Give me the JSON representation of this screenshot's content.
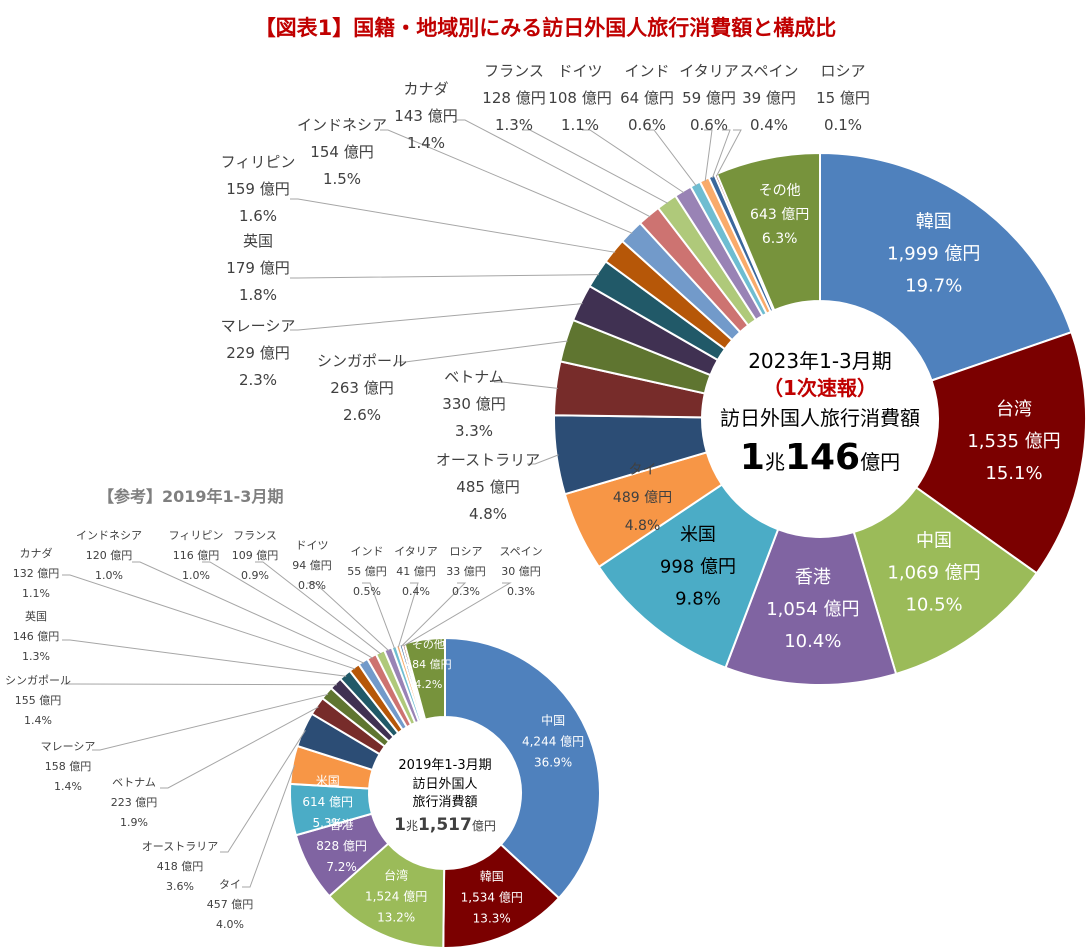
{
  "page_title": "【図表1】国籍・地域別にみる訪日外国人旅行消費額と構成比",
  "ref_title": "【参考】2019年1-3月期",
  "chart_data": [
    {
      "type": "donut",
      "center": {
        "line1": "2023年1-3月期",
        "line2": "（1次速報）",
        "line3": "訪日外国人旅行消費額",
        "total_a": "1",
        "total_b": "兆",
        "total_c": "146",
        "total_d": "億円"
      },
      "unit": "億円",
      "slices": [
        {
          "name": "韓国",
          "value": 1999,
          "value_label": "1,999 億円",
          "pct": "19.7%",
          "color": "#4f81bd"
        },
        {
          "name": "台湾",
          "value": 1535,
          "value_label": "1,535 億円",
          "pct": "15.1%",
          "color": "#7b0000"
        },
        {
          "name": "中国",
          "value": 1069,
          "value_label": "1,069 億円",
          "pct": "10.5%",
          "color": "#9bbb59"
        },
        {
          "name": "香港",
          "value": 1054,
          "value_label": "1,054 億円",
          "pct": "10.4%",
          "color": "#8064a2"
        },
        {
          "name": "米国",
          "value": 998,
          "value_label": "998 億円",
          "pct": "9.8%",
          "color": "#4bacc6"
        },
        {
          "name": "タイ",
          "value": 489,
          "value_label": "489 億円",
          "pct": "4.8%",
          "color": "#f79646"
        },
        {
          "name": "オーストラリア",
          "value": 485,
          "value_label": "485 億円",
          "pct": "4.8%",
          "color": "#2c4d75"
        },
        {
          "name": "ベトナム",
          "value": 330,
          "value_label": "330 億円",
          "pct": "3.3%",
          "color": "#772c2a"
        },
        {
          "name": "シンガポール",
          "value": 263,
          "value_label": "263 億円",
          "pct": "2.6%",
          "color": "#5f7530"
        },
        {
          "name": "マレーシア",
          "value": 229,
          "value_label": "229 億円",
          "pct": "2.3%",
          "color": "#403152"
        },
        {
          "name": "英国",
          "value": 179,
          "value_label": "179 億円",
          "pct": "1.8%",
          "color": "#215968"
        },
        {
          "name": "フィリピン",
          "value": 159,
          "value_label": "159 億円",
          "pct": "1.6%",
          "color": "#b65708"
        },
        {
          "name": "インドネシア",
          "value": 154,
          "value_label": "154 億円",
          "pct": "1.5%",
          "color": "#729aca"
        },
        {
          "name": "カナダ",
          "value": 143,
          "value_label": "143 億円",
          "pct": "1.4%",
          "color": "#cd7371"
        },
        {
          "name": "フランス",
          "value": 128,
          "value_label": "128 億円",
          "pct": "1.3%",
          "color": "#afc97a"
        },
        {
          "name": "ドイツ",
          "value": 108,
          "value_label": "108 億円",
          "pct": "1.1%",
          "color": "#9983b5"
        },
        {
          "name": "インド",
          "value": 64,
          "value_label": "64 億円",
          "pct": "0.6%",
          "color": "#6fbdd1"
        },
        {
          "name": "イタリア",
          "value": 59,
          "value_label": "59 億円",
          "pct": "0.6%",
          "color": "#f9ab6b"
        },
        {
          "name": "スペイン",
          "value": 39,
          "value_label": "39 億円",
          "pct": "0.4%",
          "color": "#3a679c"
        },
        {
          "name": "ロシア",
          "value": 15,
          "value_label": "15 億円",
          "pct": "0.1%",
          "color": "#9e3b38"
        },
        {
          "name": "その他",
          "value": 643,
          "value_label": "643 億円",
          "pct": "6.3%",
          "color": "#77933c"
        }
      ]
    },
    {
      "type": "donut",
      "center": {
        "line1": "2019年1-3月期",
        "line2": "訪日外国人",
        "line3": "旅行消費額",
        "total_a": "1",
        "total_b": "兆",
        "total_c": "1,517",
        "total_d": "億円"
      },
      "unit": "億円",
      "slices": [
        {
          "name": "中国",
          "value": 4244,
          "value_label": "4,244 億円",
          "pct": "36.9%",
          "color": "#4f81bd"
        },
        {
          "name": "韓国",
          "value": 1534,
          "value_label": "1,534 億円",
          "pct": "13.3%",
          "color": "#7b0000"
        },
        {
          "name": "台湾",
          "value": 1524,
          "value_label": "1,524 億円",
          "pct": "13.2%",
          "color": "#9bbb59"
        },
        {
          "name": "香港",
          "value": 828,
          "value_label": "828 億円",
          "pct": "7.2%",
          "color": "#8064a2"
        },
        {
          "name": "米国",
          "value": 614,
          "value_label": "614 億円",
          "pct": "5.3%",
          "color": "#4bacc6"
        },
        {
          "name": "タイ",
          "value": 457,
          "value_label": "457 億円",
          "pct": "4.0%",
          "color": "#f79646"
        },
        {
          "name": "オーストラリア",
          "value": 418,
          "value_label": "418 億円",
          "pct": "3.6%",
          "color": "#2c4d75"
        },
        {
          "name": "ベトナム",
          "value": 223,
          "value_label": "223 億円",
          "pct": "1.9%",
          "color": "#772c2a"
        },
        {
          "name": "マレーシア",
          "value": 158,
          "value_label": "158 億円",
          "pct": "1.4%",
          "color": "#5f7530"
        },
        {
          "name": "シンガポール",
          "value": 155,
          "value_label": "155 億円",
          "pct": "1.4%",
          "color": "#403152"
        },
        {
          "name": "英国",
          "value": 146,
          "value_label": "146 億円",
          "pct": "1.3%",
          "color": "#215968"
        },
        {
          "name": "カナダ",
          "value": 132,
          "value_label": "132 億円",
          "pct": "1.1%",
          "color": "#b65708"
        },
        {
          "name": "インドネシア",
          "value": 120,
          "value_label": "120 億円",
          "pct": "1.0%",
          "color": "#729aca"
        },
        {
          "name": "フィリピン",
          "value": 116,
          "value_label": "116 億円",
          "pct": "1.0%",
          "color": "#cd7371"
        },
        {
          "name": "フランス",
          "value": 109,
          "value_label": "109 億円",
          "pct": "0.9%",
          "color": "#afc97a"
        },
        {
          "name": "ドイツ",
          "value": 94,
          "value_label": "94 億円",
          "pct": "0.8%",
          "color": "#9983b5"
        },
        {
          "name": "インド",
          "value": 55,
          "value_label": "55 億円",
          "pct": "0.5%",
          "color": "#6fbdd1"
        },
        {
          "name": "イタリア",
          "value": 41,
          "value_label": "41 億円",
          "pct": "0.4%",
          "color": "#f9ab6b"
        },
        {
          "name": "ロシア",
          "value": 33,
          "value_label": "33 億円",
          "pct": "0.3%",
          "color": "#3a679c"
        },
        {
          "name": "スペイン",
          "value": 30,
          "value_label": "30 億円",
          "pct": "0.3%",
          "color": "#9e3b38"
        },
        {
          "name": "その他",
          "value": 484,
          "value_label": "484 億円",
          "pct": "4.2%",
          "color": "#77933c"
        }
      ]
    }
  ]
}
